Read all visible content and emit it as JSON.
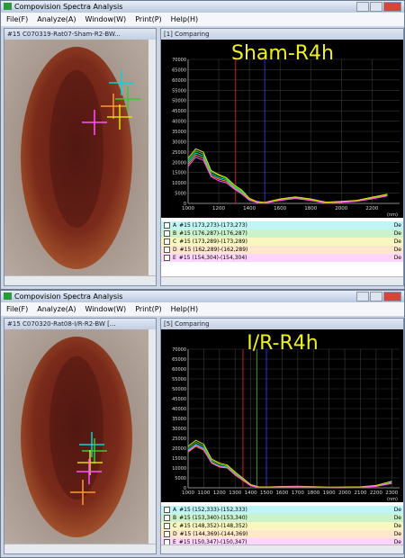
{
  "windows": [
    {
      "app_title": "Compovision Spectra Analysis",
      "menu": [
        "File(F)",
        "Analyze(A)",
        "Window(W)",
        "Print(P)",
        "Help(H)"
      ],
      "image_panel": {
        "title": "#15 C070319-Rat07-Sham-R2-BW..."
      },
      "chart_panel": {
        "title": "[1] Comparing",
        "chart": {
          "type": "line",
          "title": "Sham-R4h",
          "x_unit": "(nm)",
          "x": [
            1000,
            1050,
            1100,
            1150,
            1200,
            1250,
            1300,
            1350,
            1400,
            1450,
            1500,
            1600,
            1700,
            1800,
            1900,
            2000,
            2100,
            2200,
            2300
          ],
          "xlim": [
            1000,
            2380
          ],
          "xticks": [
            1000,
            1200,
            1400,
            1600,
            1800,
            2000,
            2200
          ],
          "ylim": [
            0,
            70000
          ],
          "yticks": [
            0,
            5000,
            10000,
            15000,
            20000,
            25000,
            30000,
            35000,
            40000,
            45000,
            50000,
            55000,
            60000,
            65000,
            70000
          ],
          "grid": true,
          "markers": [
            {
              "x": 1310,
              "color": "#e02020"
            },
            {
              "x": 1500,
              "color": "#3030ff"
            }
          ],
          "legend_extra": "De",
          "series": [
            {
              "letter": "A",
              "name": "#15 (173,273)-(173,273)",
              "color": "#00d8d8",
              "values": [
                20000,
                24500,
                23000,
                14500,
                12500,
                11500,
                8000,
                5500,
                2000,
                600,
                300,
                1800,
                2800,
                1800,
                300,
                700,
                1200,
                2600,
                4000
              ]
            },
            {
              "letter": "B",
              "name": "#15 (176,287)-(176,287)",
              "color": "#33cc33",
              "values": [
                21000,
                25500,
                24000,
                15500,
                13500,
                12000,
                8500,
                6000,
                2300,
                800,
                400,
                2000,
                3000,
                2000,
                500,
                900,
                1400,
                2800,
                4300
              ]
            },
            {
              "letter": "C",
              "name": "#15 (173,289)-(173,289)",
              "color": "#e0e000",
              "values": [
                22000,
                26500,
                25000,
                16000,
                14000,
                12500,
                9000,
                6500,
                2500,
                900,
                500,
                2200,
                3200,
                2200,
                600,
                1000,
                1500,
                3000,
                4500
              ]
            },
            {
              "letter": "D",
              "name": "#15 (162,289)-(162,289)",
              "color": "#ff9933",
              "values": [
                19000,
                23500,
                22000,
                13500,
                11800,
                10800,
                7500,
                5000,
                1800,
                500,
                200,
                1600,
                2600,
                1600,
                200,
                600,
                1100,
                2400,
                3800
              ]
            },
            {
              "letter": "E",
              "name": "#15 (154,304)-(154,304)",
              "color": "#ff55ff",
              "values": [
                18000,
                22500,
                21000,
                13000,
                11000,
                10000,
                7000,
                4600,
                1500,
                400,
                100,
                1400,
                2400,
                1400,
                100,
                500,
                1000,
                2200,
                3600
              ]
            }
          ]
        }
      }
    },
    {
      "app_title": "Compovision Spectra Analysis",
      "menu": [
        "File(F)",
        "Analyze(A)",
        "Window(W)",
        "Print(P)",
        "Help(H)"
      ],
      "image_panel": {
        "title": "#15 C070320-Rat08-I/R-R2-BW [..."
      },
      "chart_panel": {
        "title": "[5] Comparing",
        "chart": {
          "type": "line",
          "title": "I/R-R4h",
          "x_unit": "(nm)",
          "x": [
            1000,
            1050,
            1100,
            1150,
            1200,
            1250,
            1300,
            1350,
            1400,
            1450,
            1500,
            1600,
            1700,
            1800,
            1900,
            2000,
            2100,
            2200,
            2300
          ],
          "xlim": [
            1000,
            2350
          ],
          "xticks": [
            1000,
            1100,
            1200,
            1300,
            1400,
            1500,
            1600,
            1700,
            1800,
            1900,
            2000,
            2100,
            2200,
            2300
          ],
          "ylim": [
            0,
            70000
          ],
          "yticks": [
            0,
            5000,
            10000,
            15000,
            20000,
            25000,
            30000,
            35000,
            40000,
            45000,
            50000,
            55000,
            60000,
            65000,
            70000
          ],
          "grid": true,
          "markers": [
            {
              "x": 1350,
              "color": "#e02020"
            },
            {
              "x": 1440,
              "color": "#20b020"
            },
            {
              "x": 1500,
              "color": "#3030ff"
            }
          ],
          "legend_extra": "De",
          "series": [
            {
              "letter": "A",
              "name": "#15 (152,333)-(152,333)",
              "color": "#00d8d8",
              "values": [
                19000,
                22000,
                20000,
                13000,
                11000,
                10500,
                7000,
                4000,
                1200,
                300,
                200,
                500,
                600,
                400,
                100,
                200,
                300,
                800,
                2500
              ]
            },
            {
              "letter": "B",
              "name": "#15 (153,340)-(153,340)",
              "color": "#33cc33",
              "values": [
                20000,
                23000,
                21000,
                13800,
                11800,
                11000,
                7500,
                4400,
                1400,
                400,
                300,
                600,
                700,
                500,
                200,
                300,
                400,
                1000,
                3000
              ]
            },
            {
              "letter": "C",
              "name": "#15 (148,352)-(148,352)",
              "color": "#e0e000",
              "values": [
                21000,
                24000,
                22000,
                14500,
                12500,
                11500,
                8000,
                4800,
                1600,
                500,
                400,
                700,
                800,
                600,
                300,
                400,
                500,
                1200,
                3300
              ]
            },
            {
              "letter": "D",
              "name": "#15 (144,369)-(144,369)",
              "color": "#ff9933",
              "values": [
                18000,
                21000,
                19000,
                12500,
                10500,
                10000,
                6500,
                3700,
                1000,
                200,
                150,
                400,
                500,
                300,
                100,
                150,
                250,
                700,
                2200
              ]
            },
            {
              "letter": "E",
              "name": "#15 (150,347)-(150,347)",
              "color": "#ff55ff",
              "values": [
                18500,
                21500,
                19500,
                12800,
                10800,
                10200,
                6800,
                3900,
                1100,
                250,
                180,
                450,
                550,
                350,
                120,
                180,
                280,
                750,
                2400
              ]
            }
          ]
        }
      }
    }
  ]
}
